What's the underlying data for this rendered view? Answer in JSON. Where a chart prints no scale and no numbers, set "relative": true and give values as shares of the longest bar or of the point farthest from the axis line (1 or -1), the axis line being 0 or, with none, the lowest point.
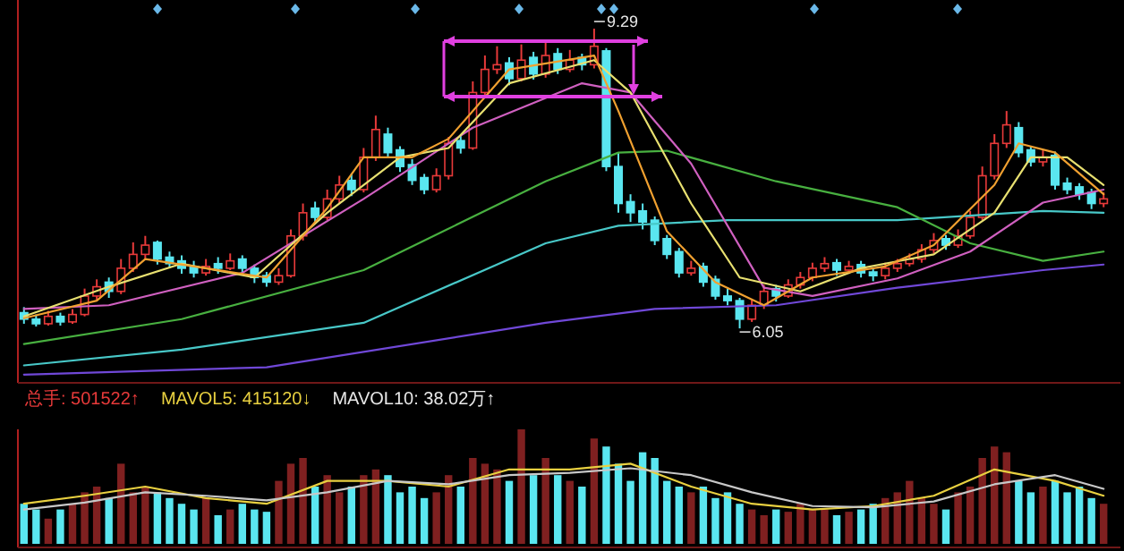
{
  "chart_data": [
    {
      "type": "candlestick",
      "ylim": [
        5.5,
        9.6
      ],
      "categories": [
        null,
        null,
        null,
        null,
        null,
        null,
        null,
        null,
        null,
        null,
        null,
        null,
        null,
        null,
        null,
        null,
        null,
        null,
        null,
        null,
        null,
        null,
        null,
        null,
        null,
        null,
        null,
        null,
        null,
        null,
        null,
        null,
        null,
        null,
        null,
        null,
        null,
        null,
        null,
        null,
        null,
        null,
        null,
        null,
        null,
        null,
        null,
        null,
        null,
        null,
        null,
        null,
        null,
        null,
        null,
        null,
        null,
        null,
        null,
        null,
        null,
        null,
        null,
        null,
        null,
        null,
        null,
        null,
        null,
        null,
        null,
        null,
        null,
        null,
        null,
        null,
        null,
        null,
        null,
        null,
        null,
        null,
        null,
        null,
        null,
        null,
        null,
        null,
        null,
        null
      ],
      "ohlc": [
        [
          6.22,
          6.28,
          6.1,
          6.15
        ],
        [
          6.15,
          6.2,
          6.07,
          6.1
        ],
        [
          6.1,
          6.24,
          6.08,
          6.18
        ],
        [
          6.18,
          6.22,
          6.08,
          6.12
        ],
        [
          6.12,
          6.26,
          6.1,
          6.2
        ],
        [
          6.2,
          6.48,
          6.18,
          6.4
        ],
        [
          6.4,
          6.58,
          6.36,
          6.5
        ],
        [
          6.55,
          6.6,
          6.38,
          6.45
        ],
        [
          6.45,
          6.8,
          6.42,
          6.7
        ],
        [
          6.7,
          6.98,
          6.66,
          6.85
        ],
        [
          6.85,
          7.05,
          6.8,
          6.95
        ],
        [
          6.98,
          7.0,
          6.74,
          6.8
        ],
        [
          6.82,
          6.88,
          6.7,
          6.75
        ],
        [
          6.78,
          6.84,
          6.64,
          6.7
        ],
        [
          6.72,
          6.78,
          6.6,
          6.65
        ],
        [
          6.65,
          6.8,
          6.62,
          6.72
        ],
        [
          6.75,
          6.82,
          6.64,
          6.7
        ],
        [
          6.7,
          6.86,
          6.68,
          6.78
        ],
        [
          6.8,
          6.84,
          6.64,
          6.7
        ],
        [
          6.7,
          6.74,
          6.54,
          6.6
        ],
        [
          6.62,
          6.66,
          6.5,
          6.55
        ],
        [
          6.55,
          6.7,
          6.52,
          6.62
        ],
        [
          6.62,
          7.12,
          6.6,
          7.05
        ],
        [
          7.05,
          7.4,
          7.0,
          7.3
        ],
        [
          7.35,
          7.42,
          7.18,
          7.25
        ],
        [
          7.25,
          7.55,
          7.22,
          7.45
        ],
        [
          7.45,
          7.7,
          7.4,
          7.6
        ],
        [
          7.65,
          7.72,
          7.48,
          7.55
        ],
        [
          7.55,
          8.0,
          7.52,
          7.9
        ],
        [
          7.9,
          8.35,
          7.86,
          8.2
        ],
        [
          8.15,
          8.22,
          7.9,
          7.95
        ],
        [
          7.98,
          8.02,
          7.74,
          7.8
        ],
        [
          7.82,
          7.88,
          7.6,
          7.65
        ],
        [
          7.68,
          7.72,
          7.5,
          7.55
        ],
        [
          7.55,
          7.78,
          7.52,
          7.7
        ],
        [
          7.7,
          8.12,
          7.66,
          8.05
        ],
        [
          8.08,
          8.14,
          7.94,
          8.0
        ],
        [
          8.0,
          8.72,
          7.98,
          8.6
        ],
        [
          8.6,
          9.0,
          8.55,
          8.85
        ],
        [
          8.85,
          9.1,
          8.8,
          8.9
        ],
        [
          8.92,
          8.98,
          8.68,
          8.75
        ],
        [
          8.75,
          9.12,
          8.72,
          8.95
        ],
        [
          8.98,
          9.04,
          8.74,
          8.8
        ],
        [
          8.8,
          9.15,
          8.76,
          9.0
        ],
        [
          9.02,
          9.08,
          8.8,
          8.85
        ],
        [
          8.85,
          9.06,
          8.82,
          8.95
        ],
        [
          8.98,
          9.02,
          8.84,
          8.9
        ],
        [
          8.9,
          9.29,
          8.86,
          9.1
        ],
        [
          9.05,
          9.08,
          7.75,
          7.8
        ],
        [
          7.8,
          7.95,
          7.3,
          7.4
        ],
        [
          7.42,
          7.5,
          7.2,
          7.3
        ],
        [
          7.32,
          7.4,
          7.12,
          7.2
        ],
        [
          7.22,
          7.26,
          6.95,
          7.0
        ],
        [
          7.02,
          7.06,
          6.8,
          6.85
        ],
        [
          6.88,
          6.92,
          6.6,
          6.65
        ],
        [
          6.65,
          6.78,
          6.62,
          6.7
        ],
        [
          6.72,
          6.76,
          6.5,
          6.55
        ],
        [
          6.58,
          6.62,
          6.36,
          6.4
        ],
        [
          6.4,
          6.48,
          6.3,
          6.35
        ],
        [
          6.35,
          6.38,
          6.05,
          6.15
        ],
        [
          6.15,
          6.36,
          6.12,
          6.3
        ],
        [
          6.3,
          6.52,
          6.26,
          6.45
        ],
        [
          6.48,
          6.52,
          6.34,
          6.4
        ],
        [
          6.4,
          6.58,
          6.38,
          6.52
        ],
        [
          6.52,
          6.66,
          6.48,
          6.6
        ],
        [
          6.6,
          6.76,
          6.56,
          6.7
        ],
        [
          6.7,
          6.82,
          6.66,
          6.75
        ],
        [
          6.76,
          6.8,
          6.62,
          6.68
        ],
        [
          6.68,
          6.78,
          6.64,
          6.72
        ],
        [
          6.74,
          6.78,
          6.6,
          6.65
        ],
        [
          6.66,
          6.7,
          6.56,
          6.62
        ],
        [
          6.62,
          6.76,
          6.58,
          6.7
        ],
        [
          6.7,
          6.8,
          6.66,
          6.75
        ],
        [
          6.75,
          6.86,
          6.72,
          6.8
        ],
        [
          6.8,
          6.96,
          6.76,
          6.9
        ],
        [
          6.9,
          7.08,
          6.86,
          7.0
        ],
        [
          7.02,
          7.06,
          6.9,
          6.95
        ],
        [
          6.95,
          7.12,
          6.92,
          7.05
        ],
        [
          7.05,
          7.32,
          7.02,
          7.25
        ],
        [
          7.25,
          7.8,
          7.22,
          7.7
        ],
        [
          7.7,
          8.15,
          7.66,
          8.05
        ],
        [
          8.05,
          8.4,
          8.0,
          8.25
        ],
        [
          8.22,
          8.28,
          7.9,
          7.95
        ],
        [
          7.98,
          8.02,
          7.8,
          7.85
        ],
        [
          7.85,
          7.98,
          7.8,
          7.9
        ],
        [
          7.92,
          7.96,
          7.55,
          7.6
        ],
        [
          7.62,
          7.68,
          7.5,
          7.55
        ],
        [
          7.58,
          7.62,
          7.44,
          7.5
        ],
        [
          7.52,
          7.56,
          7.34,
          7.4
        ],
        [
          7.4,
          7.52,
          7.36,
          7.45
        ]
      ],
      "colors": [
        "#5ae6f0",
        "#5ae6f0",
        "#e83a3a",
        "#5ae6f0",
        "#e83a3a",
        "#e83a3a",
        "#e83a3a",
        "#5ae6f0",
        "#e83a3a",
        "#e83a3a",
        "#e83a3a",
        "#5ae6f0",
        "#5ae6f0",
        "#5ae6f0",
        "#5ae6f0",
        "#e83a3a",
        "#5ae6f0",
        "#e83a3a",
        "#5ae6f0",
        "#5ae6f0",
        "#5ae6f0",
        "#e83a3a",
        "#e83a3a",
        "#e83a3a",
        "#5ae6f0",
        "#e83a3a",
        "#e83a3a",
        "#5ae6f0",
        "#e83a3a",
        "#e83a3a",
        "#5ae6f0",
        "#5ae6f0",
        "#5ae6f0",
        "#5ae6f0",
        "#e83a3a",
        "#e83a3a",
        "#5ae6f0",
        "#e83a3a",
        "#e83a3a",
        "#e83a3a",
        "#5ae6f0",
        "#e83a3a",
        "#5ae6f0",
        "#e83a3a",
        "#5ae6f0",
        "#e83a3a",
        "#5ae6f0",
        "#e83a3a",
        "#5ae6f0",
        "#5ae6f0",
        "#5ae6f0",
        "#5ae6f0",
        "#5ae6f0",
        "#5ae6f0",
        "#5ae6f0",
        "#e83a3a",
        "#5ae6f0",
        "#5ae6f0",
        "#5ae6f0",
        "#5ae6f0",
        "#e83a3a",
        "#e83a3a",
        "#5ae6f0",
        "#e83a3a",
        "#e83a3a",
        "#e83a3a",
        "#e83a3a",
        "#5ae6f0",
        "#e83a3a",
        "#5ae6f0",
        "#5ae6f0",
        "#e83a3a",
        "#e83a3a",
        "#e83a3a",
        "#e83a3a",
        "#e83a3a",
        "#5ae6f0",
        "#e83a3a",
        "#e83a3a",
        "#e83a3a",
        "#e83a3a",
        "#e83a3a",
        "#5ae6f0",
        "#5ae6f0",
        "#e83a3a",
        "#5ae6f0",
        "#5ae6f0",
        "#5ae6f0",
        "#5ae6f0",
        "#e83a3a"
      ],
      "series": [
        {
          "type": "line",
          "color": "#7048d8",
          "values": [
            5.55,
            null,
            null,
            null,
            null,
            null,
            null,
            null,
            null,
            null,
            null,
            null,
            null,
            null,
            null,
            null,
            null,
            null,
            null,
            null,
            5.63,
            null,
            null,
            null,
            null,
            null,
            null,
            null,
            null,
            null,
            null,
            null,
            null,
            null,
            null,
            null,
            null,
            null,
            null,
            null,
            null,
            null,
            null,
            6.11,
            null,
            null,
            null,
            null,
            null,
            null,
            null,
            null,
            6.26,
            null,
            null,
            null,
            null,
            null,
            null,
            null,
            null,
            null,
            6.3,
            null,
            null,
            null,
            null,
            null,
            null,
            null,
            null,
            null,
            6.49,
            null,
            null,
            null,
            null,
            null,
            null,
            null,
            null,
            null,
            null,
            null,
            6.68,
            null,
            null,
            null,
            null,
            6.74
          ]
        },
        {
          "type": "line",
          "color": "#48c8c8",
          "values": [
            5.65,
            null,
            null,
            null,
            null,
            null,
            null,
            null,
            null,
            null,
            null,
            null,
            null,
            5.82,
            null,
            null,
            null,
            null,
            null,
            null,
            null,
            null,
            null,
            null,
            null,
            null,
            null,
            null,
            6.11,
            null,
            null,
            null,
            null,
            null,
            null,
            null,
            null,
            null,
            null,
            null,
            null,
            null,
            null,
            6.97,
            null,
            null,
            null,
            null,
            null,
            7.16,
            null,
            null,
            null,
            null,
            null,
            null,
            null,
            null,
            7.22,
            null,
            null,
            null,
            null,
            null,
            null,
            null,
            null,
            null,
            null,
            null,
            null,
            null,
            7.22,
            null,
            null,
            null,
            null,
            null,
            null,
            null,
            null,
            null,
            null,
            null,
            7.32,
            null,
            null,
            null,
            null,
            7.3
          ]
        },
        {
          "type": "line",
          "color": "#48b040",
          "values": [
            5.88,
            null,
            null,
            null,
            null,
            null,
            null,
            null,
            null,
            null,
            null,
            null,
            null,
            6.15,
            null,
            null,
            null,
            null,
            null,
            null,
            null,
            null,
            null,
            null,
            null,
            null,
            null,
            null,
            6.68,
            null,
            null,
            null,
            null,
            null,
            null,
            null,
            null,
            null,
            null,
            null,
            null,
            null,
            null,
            7.64,
            null,
            null,
            null,
            null,
            null,
            7.95,
            null,
            null,
            null,
            7.97,
            null,
            null,
            null,
            null,
            null,
            null,
            null,
            null,
            7.64,
            null,
            null,
            null,
            null,
            null,
            null,
            null,
            null,
            null,
            7.36,
            null,
            null,
            null,
            null,
            null,
            6.97,
            null,
            null,
            null,
            null,
            null,
            6.78,
            null,
            null,
            null,
            null,
            6.88
          ]
        },
        {
          "type": "line",
          "color": "#d060c0",
          "values": [
            6.26,
            null,
            null,
            null,
            null,
            null,
            null,
            6.3,
            null,
            null,
            null,
            null,
            null,
            null,
            null,
            null,
            null,
            null,
            6.65,
            null,
            null,
            null,
            null,
            null,
            null,
            null,
            null,
            null,
            7.45,
            null,
            null,
            null,
            null,
            null,
            null,
            null,
            null,
            8.22,
            null,
            null,
            null,
            null,
            null,
            null,
            null,
            null,
            8.7,
            null,
            null,
            null,
            8.6,
            null,
            null,
            null,
            null,
            7.83,
            null,
            null,
            null,
            null,
            null,
            6.49,
            null,
            null,
            null,
            6.4,
            null,
            null,
            null,
            null,
            null,
            null,
            6.59,
            null,
            null,
            null,
            null,
            null,
            6.88,
            null,
            null,
            null,
            null,
            null,
            7.41,
            null,
            null,
            null,
            null,
            7.55
          ]
        },
        {
          "type": "line",
          "color": "#e8e070",
          "values": [
            6.18,
            null,
            null,
            null,
            null,
            null,
            null,
            6.5,
            null,
            null,
            null,
            null,
            null,
            6.75,
            null,
            null,
            null,
            null,
            null,
            6.6,
            null,
            null,
            null,
            null,
            null,
            7.3,
            null,
            null,
            null,
            null,
            null,
            7.9,
            null,
            null,
            null,
            8.0,
            null,
            null,
            null,
            null,
            8.7,
            null,
            null,
            null,
            null,
            null,
            null,
            8.95,
            null,
            null,
            8.6,
            null,
            null,
            null,
            null,
            7.4,
            null,
            null,
            null,
            6.6,
            null,
            null,
            null,
            null,
            6.45,
            null,
            null,
            null,
            null,
            6.7,
            null,
            null,
            null,
            null,
            null,
            6.85,
            null,
            null,
            null,
            null,
            7.3,
            null,
            null,
            7.9,
            null,
            null,
            7.9,
            null,
            null,
            7.6
          ]
        },
        {
          "type": "line",
          "color": "#f0a030",
          "values": [
            6.16,
            null,
            null,
            null,
            null,
            null,
            6.35,
            null,
            null,
            null,
            6.8,
            null,
            null,
            null,
            null,
            6.7,
            null,
            null,
            null,
            null,
            6.6,
            null,
            null,
            null,
            null,
            7.35,
            null,
            null,
            7.9,
            null,
            null,
            null,
            7.9,
            null,
            null,
            8.1,
            null,
            null,
            null,
            null,
            8.85,
            null,
            null,
            null,
            null,
            null,
            null,
            9.0,
            null,
            8.4,
            null,
            null,
            null,
            7.1,
            null,
            null,
            null,
            6.55,
            null,
            null,
            null,
            6.3,
            null,
            null,
            null,
            6.6,
            null,
            null,
            null,
            null,
            null,
            6.72,
            null,
            null,
            null,
            6.95,
            null,
            null,
            null,
            null,
            7.6,
            null,
            8.05,
            null,
            null,
            7.95,
            null,
            null,
            null,
            7.5
          ]
        }
      ],
      "annotations": [
        "9.29",
        "6.05"
      ]
    },
    {
      "type": "bar",
      "relative": true,
      "categories": [
        null,
        null,
        null,
        null,
        null,
        null,
        null,
        null,
        null,
        null,
        null,
        null,
        null,
        null,
        null,
        null,
        null,
        null,
        null,
        null,
        null,
        null,
        null,
        null,
        null,
        null,
        null,
        null,
        null,
        null,
        null,
        null,
        null,
        null,
        null,
        null,
        null,
        null,
        null,
        null,
        null,
        null,
        null,
        null,
        null,
        null,
        null,
        null,
        null,
        null,
        null,
        null,
        null,
        null,
        null,
        null,
        null,
        null,
        null,
        null,
        null,
        null,
        null,
        null,
        null,
        null,
        null,
        null,
        null,
        null,
        null,
        null,
        null,
        null,
        null,
        null,
        null,
        null,
        null,
        null,
        null,
        null,
        null,
        null,
        null,
        null,
        null,
        null,
        null,
        null
      ],
      "values": [
        0.35,
        0.3,
        0.22,
        0.3,
        0.35,
        0.45,
        0.5,
        0.4,
        0.7,
        0.45,
        0.5,
        0.45,
        0.4,
        0.35,
        0.3,
        0.4,
        0.25,
        0.3,
        0.35,
        0.3,
        0.28,
        0.55,
        0.7,
        0.75,
        0.5,
        0.6,
        0.45,
        0.5,
        0.6,
        0.65,
        0.6,
        0.45,
        0.5,
        0.4,
        0.45,
        0.6,
        0.5,
        0.75,
        0.7,
        0.65,
        0.55,
        1.0,
        0.6,
        0.75,
        0.6,
        0.55,
        0.5,
        0.92,
        0.85,
        0.7,
        0.55,
        0.8,
        0.75,
        0.55,
        0.5,
        0.45,
        0.5,
        0.4,
        0.45,
        0.35,
        0.3,
        0.25,
        0.3,
        0.28,
        0.35,
        0.3,
        0.3,
        0.25,
        0.28,
        0.3,
        0.35,
        0.4,
        0.45,
        0.55,
        0.4,
        0.35,
        0.3,
        0.45,
        0.5,
        0.75,
        0.85,
        0.8,
        0.55,
        0.45,
        0.5,
        0.55,
        0.45,
        0.5,
        0.4,
        0.35
      ],
      "colors": [
        "#5ae6f0",
        "#5ae6f0",
        "#e83a3a",
        "#5ae6f0",
        "#e83a3a",
        "#e83a3a",
        "#e83a3a",
        "#5ae6f0",
        "#e83a3a",
        "#e83a3a",
        "#e83a3a",
        "#5ae6f0",
        "#5ae6f0",
        "#5ae6f0",
        "#5ae6f0",
        "#e83a3a",
        "#5ae6f0",
        "#e83a3a",
        "#5ae6f0",
        "#5ae6f0",
        "#5ae6f0",
        "#e83a3a",
        "#e83a3a",
        "#e83a3a",
        "#5ae6f0",
        "#e83a3a",
        "#e83a3a",
        "#5ae6f0",
        "#e83a3a",
        "#e83a3a",
        "#5ae6f0",
        "#5ae6f0",
        "#5ae6f0",
        "#5ae6f0",
        "#e83a3a",
        "#e83a3a",
        "#5ae6f0",
        "#e83a3a",
        "#e83a3a",
        "#e83a3a",
        "#5ae6f0",
        "#e83a3a",
        "#5ae6f0",
        "#e83a3a",
        "#5ae6f0",
        "#e83a3a",
        "#5ae6f0",
        "#e83a3a",
        "#5ae6f0",
        "#5ae6f0",
        "#5ae6f0",
        "#5ae6f0",
        "#5ae6f0",
        "#5ae6f0",
        "#5ae6f0",
        "#e83a3a",
        "#5ae6f0",
        "#5ae6f0",
        "#5ae6f0",
        "#5ae6f0",
        "#e83a3a",
        "#e83a3a",
        "#5ae6f0",
        "#e83a3a",
        "#e83a3a",
        "#e83a3a",
        "#e83a3a",
        "#5ae6f0",
        "#e83a3a",
        "#5ae6f0",
        "#5ae6f0",
        "#e83a3a",
        "#e83a3a",
        "#e83a3a",
        "#e83a3a",
        "#e83a3a",
        "#5ae6f0",
        "#e83a3a",
        "#e83a3a",
        "#e83a3a",
        "#e83a3a",
        "#e83a3a",
        "#5ae6f0",
        "#5ae6f0",
        "#e83a3a",
        "#5ae6f0",
        "#5ae6f0",
        "#5ae6f0",
        "#5ae6f0",
        "#e83a3a"
      ],
      "series": [
        {
          "type": "line",
          "color": "#e8d040",
          "values": [
            0.35,
            null,
            null,
            null,
            null,
            0.42,
            null,
            null,
            null,
            null,
            0.5,
            null,
            null,
            null,
            null,
            0.4,
            null,
            null,
            null,
            null,
            0.35,
            null,
            null,
            null,
            null,
            0.55,
            null,
            null,
            null,
            null,
            0.55,
            null,
            null,
            null,
            null,
            0.5,
            null,
            null,
            null,
            null,
            0.65,
            null,
            null,
            null,
            null,
            0.65,
            null,
            null,
            null,
            null,
            0.7,
            null,
            null,
            null,
            null,
            0.5,
            null,
            null,
            null,
            null,
            0.35,
            null,
            null,
            null,
            null,
            0.3,
            null,
            null,
            null,
            null,
            0.33,
            null,
            null,
            null,
            null,
            0.42,
            null,
            null,
            null,
            null,
            0.65,
            null,
            null,
            null,
            null,
            0.55,
            null,
            null,
            null,
            0.42
          ]
        },
        {
          "type": "line",
          "color": "#c8c8c8",
          "values": [
            0.3,
            null,
            null,
            null,
            null,
            0.36,
            null,
            null,
            null,
            null,
            0.45,
            null,
            null,
            null,
            null,
            0.42,
            null,
            null,
            null,
            null,
            0.38,
            null,
            null,
            null,
            null,
            0.45,
            null,
            null,
            null,
            null,
            0.55,
            null,
            null,
            null,
            null,
            0.52,
            null,
            null,
            null,
            null,
            0.6,
            null,
            null,
            null,
            null,
            0.62,
            null,
            null,
            null,
            null,
            0.66,
            null,
            null,
            null,
            null,
            0.6,
            null,
            null,
            null,
            null,
            0.45,
            null,
            null,
            null,
            null,
            0.33,
            null,
            null,
            null,
            null,
            0.32,
            null,
            null,
            null,
            null,
            0.37,
            null,
            null,
            null,
            null,
            0.52,
            null,
            null,
            null,
            null,
            0.6,
            null,
            null,
            null,
            0.48
          ]
        }
      ],
      "annotations": [
        "总手: 501522↑",
        "MAVOL5: 415120↓",
        "MAVOL10: 38.02万↑"
      ]
    }
  ]
}
